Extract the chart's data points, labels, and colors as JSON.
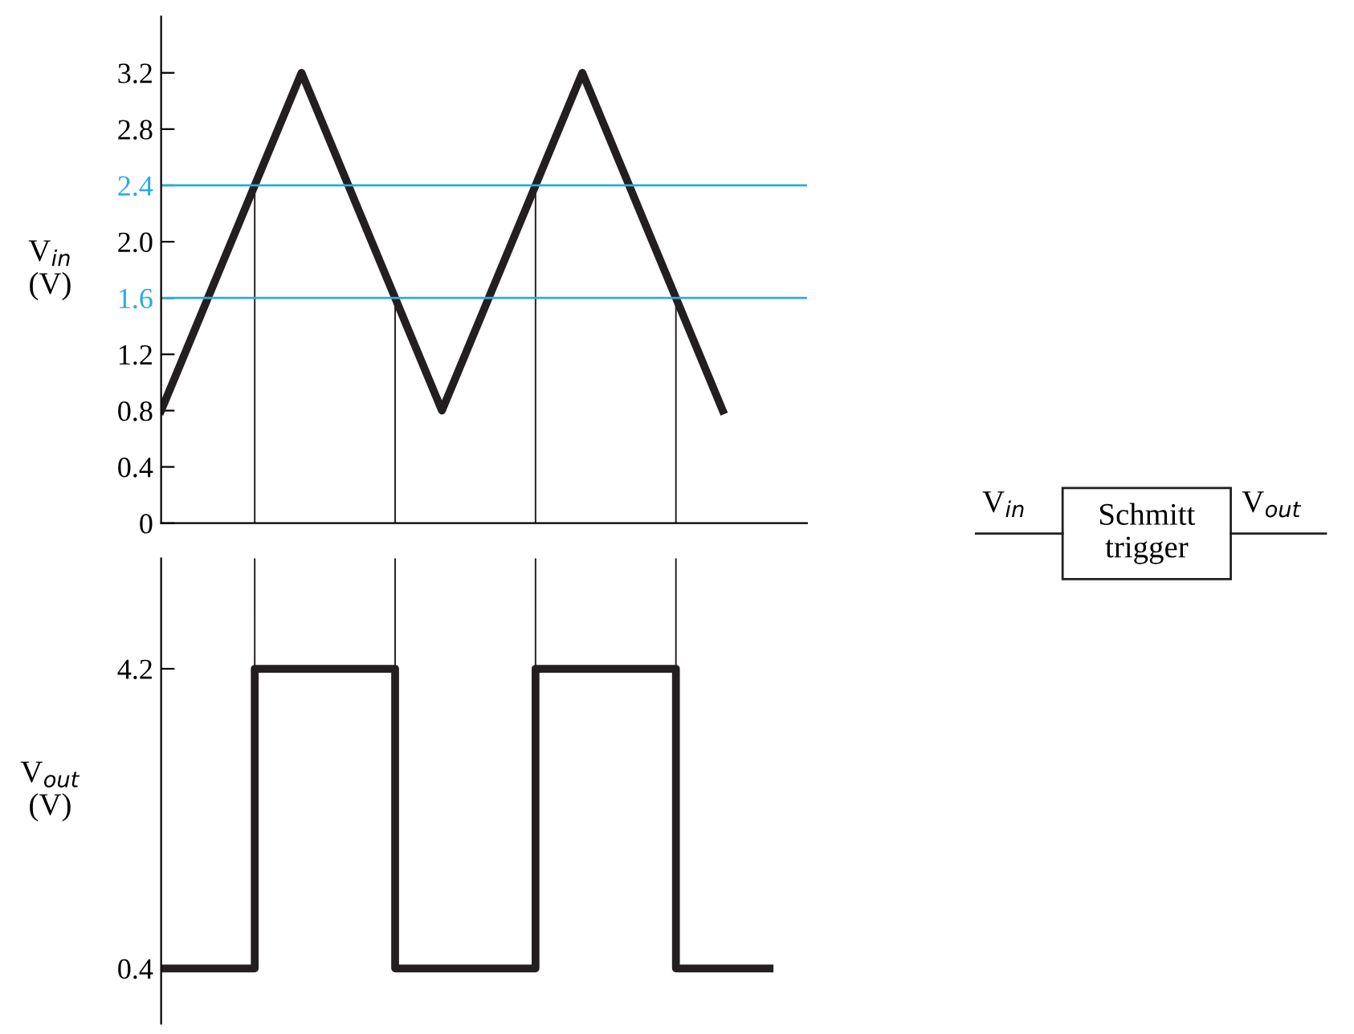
{
  "chart_data": [
    {
      "type": "line",
      "ylabel": "V$_{in}$\n(V)",
      "categories": [
        null,
        null,
        null,
        null,
        null,
        null,
        null,
        null,
        null,
        null,
        null,
        null,
        null
      ],
      "tick_labels": "y",
      "ylim": [
        0,
        3.6
      ],
      "yticks": [
        0,
        0.4,
        0.8,
        1.2,
        1.6,
        {
          "value": 2,
          "label": "2.0"
        },
        2.4,
        2.8,
        3.2
      ],
      "series": [
        {
          "color": "#231f20",
          "values": [
            0.8,
            1.6,
            2.4,
            3.2,
            2.4,
            1.6,
            0.8,
            1.6,
            2.4,
            3.2,
            2.4,
            1.6,
            0.8
          ]
        }
      ],
      "ref_lines": [
        {
          "axis": "y",
          "value": 1.6,
          "color": "#29abe2"
        },
        {
          "axis": "y",
          "value": 2.4,
          "color": "#29abe2"
        }
      ]
    },
    {
      "type": "step",
      "ylabel": "V$_{out}$\n(V)",
      "categories": [
        null,
        null,
        null,
        null,
        null,
        null,
        null,
        null,
        null,
        null,
        null,
        null,
        null,
        null
      ],
      "tick_labels": "y",
      "ylim": [
        -0.3,
        5.6
      ],
      "yticks": [
        0.4,
        4.2
      ],
      "series": [
        {
          "color": "#231f20",
          "values": [
            0.4,
            0.4,
            4.2,
            4.2,
            4.2,
            0.4,
            0.4,
            0.4,
            4.2,
            4.2,
            4.2,
            0.4,
            0.4,
            0.4
          ]
        }
      ]
    },
    {
      "type": "other",
      "annotations": [
        "V$_{in}$",
        "Schmitt trigger",
        "V$_{out}$"
      ]
    }
  ]
}
